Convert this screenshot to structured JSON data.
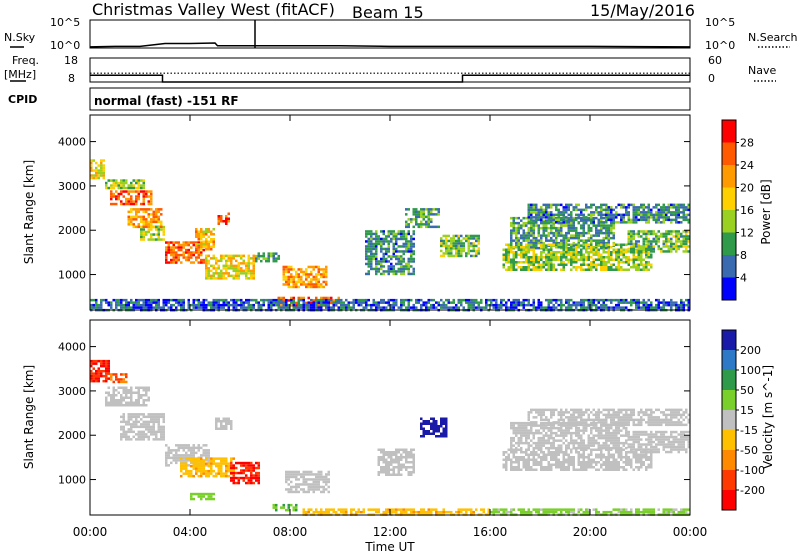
{
  "header": {
    "title": "Christmas Valley West (fitACF)",
    "beam": "Beam 15",
    "date": "15/May/2016"
  },
  "noise_panel": {
    "left_label": "N.Sky",
    "right_label": "N.Search",
    "tick_top": "10^5",
    "tick_bottom": "10^0"
  },
  "freq_panel": {
    "left_label": "Freq.",
    "left_unit": "[MHz]",
    "right_label": "Nave",
    "left_ticks": [
      "18",
      "8"
    ],
    "right_ticks": [
      "60",
      "0"
    ]
  },
  "cpid_panel": {
    "label": "CPID",
    "text": "normal (fast) -151 RF"
  },
  "power_panel": {
    "ylabel": "Slant Range [km]",
    "colorbar_label": "Power [dB]",
    "colorbar_ticks": [
      "28",
      "24",
      "20",
      "16",
      "12",
      "8",
      "4"
    ],
    "colors": [
      "#ff0000",
      "#ff5a00",
      "#ff9a00",
      "#ffd000",
      "#9ad020",
      "#2f9a4a",
      "#3a6ab0",
      "#0000ff"
    ]
  },
  "velocity_panel": {
    "ylabel": "Slant Range [km]",
    "colorbar_label": "Velocity [m s^-1]",
    "colorbar_ticks": [
      "200",
      "100",
      "50",
      "15",
      "-15",
      "-50",
      "-100",
      "-200"
    ],
    "colors": [
      "#1a1aa8",
      "#2e78c8",
      "#2f9a4a",
      "#7ad02a",
      "#c0c0c0",
      "#ffc000",
      "#ff8a00",
      "#ff3a00",
      "#ff0000"
    ]
  },
  "x_axis": {
    "label": "Time UT",
    "ticks": [
      "00:00",
      "04:00",
      "08:00",
      "12:00",
      "16:00",
      "20:00",
      "00:00"
    ]
  },
  "chart_data": {
    "type": "heatmap",
    "x_unit": "hours UT",
    "xlim": [
      0,
      24
    ],
    "ylim": [
      200,
      4600
    ],
    "y_ticks": [
      1000,
      2000,
      3000,
      4000
    ],
    "noise": {
      "ylim": [
        0,
        5
      ],
      "sky": [
        [
          0,
          0.2
        ],
        [
          1,
          0.3
        ],
        [
          2,
          0.3
        ],
        [
          3,
          0.8
        ],
        [
          4,
          0.8
        ],
        [
          5,
          0.9
        ],
        [
          5.1,
          0.4
        ],
        [
          7,
          0.4
        ],
        [
          10,
          0.4
        ],
        [
          12,
          0.3
        ],
        [
          16,
          0.3
        ],
        [
          20,
          0.3
        ],
        [
          24,
          0.2
        ]
      ],
      "spikes": [
        [
          6.6,
          5
        ]
      ]
    },
    "frequency_mhz": [
      [
        0,
        10.8
      ],
      [
        2.9,
        10.8
      ],
      [
        2.9,
        8
      ],
      [
        14.9,
        8
      ],
      [
        14.9,
        10.8
      ],
      [
        24,
        10.8
      ]
    ],
    "nave": [
      [
        0,
        22
      ],
      [
        24,
        22
      ]
    ],
    "power_regions": [
      {
        "x": [
          0,
          0.6
        ],
        "y": [
          3200,
          3600
        ],
        "db": 18
      },
      {
        "x": [
          0.6,
          2.2
        ],
        "y": [
          2950,
          3150
        ],
        "db": 14
      },
      {
        "x": [
          0.8,
          2.5
        ],
        "y": [
          2600,
          2900
        ],
        "db": 26
      },
      {
        "x": [
          1.5,
          2.9
        ],
        "y": [
          2100,
          2500
        ],
        "db": 22
      },
      {
        "x": [
          2.0,
          3.0
        ],
        "y": [
          1800,
          2100
        ],
        "db": 14
      },
      {
        "x": [
          3.0,
          4.6
        ],
        "y": [
          1250,
          1750
        ],
        "db": 26
      },
      {
        "x": [
          4.2,
          5.0
        ],
        "y": [
          1550,
          2050
        ],
        "db": 20
      },
      {
        "x": [
          4.6,
          6.6
        ],
        "y": [
          900,
          1450
        ],
        "db": 18
      },
      {
        "x": [
          5.1,
          5.6
        ],
        "y": [
          2150,
          2400
        ],
        "db": 26
      },
      {
        "x": [
          6.6,
          7.6
        ],
        "y": [
          1300,
          1500
        ],
        "db": 10
      },
      {
        "x": [
          7.7,
          9.5
        ],
        "y": [
          700,
          1200
        ],
        "db": 22
      },
      {
        "x": [
          7.5,
          10.0
        ],
        "y": [
          300,
          500
        ],
        "db": 26
      },
      {
        "x": [
          11.0,
          13.0
        ],
        "y": [
          1000,
          2000
        ],
        "db": 8
      },
      {
        "x": [
          12.6,
          14.0
        ],
        "y": [
          2100,
          2500
        ],
        "db": 10
      },
      {
        "x": [
          14.0,
          15.6
        ],
        "y": [
          1400,
          1900
        ],
        "db": 12
      },
      {
        "x": [
          16.8,
          21.0
        ],
        "y": [
          1600,
          2300
        ],
        "db": 10
      },
      {
        "x": [
          16.5,
          22.5
        ],
        "y": [
          1100,
          1700
        ],
        "db": 14
      },
      {
        "x": [
          21.5,
          24.0
        ],
        "y": [
          1500,
          2000
        ],
        "db": 12
      },
      {
        "x": [
          17.5,
          24.0
        ],
        "y": [
          2200,
          2600
        ],
        "db": 8
      },
      {
        "x": [
          0,
          24.0
        ],
        "y": [
          200,
          450
        ],
        "db": 6
      }
    ],
    "velocity_regions": [
      {
        "x": [
          0,
          0.8
        ],
        "y": [
          3200,
          3700
        ],
        "v": -200
      },
      {
        "x": [
          0.8,
          1.5
        ],
        "y": [
          3200,
          3400
        ],
        "v": -100
      },
      {
        "x": [
          0.6,
          2.4
        ],
        "y": [
          2700,
          3100
        ],
        "v": 0
      },
      {
        "x": [
          1.2,
          3.0
        ],
        "y": [
          1900,
          2500
        ],
        "v": 0
      },
      {
        "x": [
          3.0,
          4.8
        ],
        "y": [
          1300,
          1800
        ],
        "v": 0
      },
      {
        "x": [
          3.6,
          5.8
        ],
        "y": [
          1100,
          1500
        ],
        "v": -40
      },
      {
        "x": [
          5.6,
          6.8
        ],
        "y": [
          900,
          1400
        ],
        "v": -200
      },
      {
        "x": [
          5.0,
          5.7
        ],
        "y": [
          2150,
          2400
        ],
        "v": 0
      },
      {
        "x": [
          7.8,
          9.6
        ],
        "y": [
          700,
          1200
        ],
        "v": 0
      },
      {
        "x": [
          4.0,
          5.0
        ],
        "y": [
          550,
          700
        ],
        "v": 30
      },
      {
        "x": [
          7.3,
          8.3
        ],
        "y": [
          300,
          450
        ],
        "v": 50
      },
      {
        "x": [
          8.5,
          16.0
        ],
        "y": [
          200,
          350
        ],
        "v": -40
      },
      {
        "x": [
          16.0,
          24.0
        ],
        "y": [
          200,
          350
        ],
        "v": 25
      },
      {
        "x": [
          13.2,
          14.2
        ],
        "y": [
          1950,
          2400
        ],
        "v": 220
      },
      {
        "x": [
          11.5,
          13.0
        ],
        "y": [
          1100,
          1700
        ],
        "v": 0
      },
      {
        "x": [
          16.8,
          21.5
        ],
        "y": [
          1700,
          2300
        ],
        "v": 0
      },
      {
        "x": [
          16.5,
          22.5
        ],
        "y": [
          1200,
          1700
        ],
        "v": 0
      },
      {
        "x": [
          21.5,
          24.0
        ],
        "y": [
          1600,
          2100
        ],
        "v": 0
      },
      {
        "x": [
          17.5,
          24.0
        ],
        "y": [
          2250,
          2600
        ],
        "v": 0
      }
    ]
  }
}
